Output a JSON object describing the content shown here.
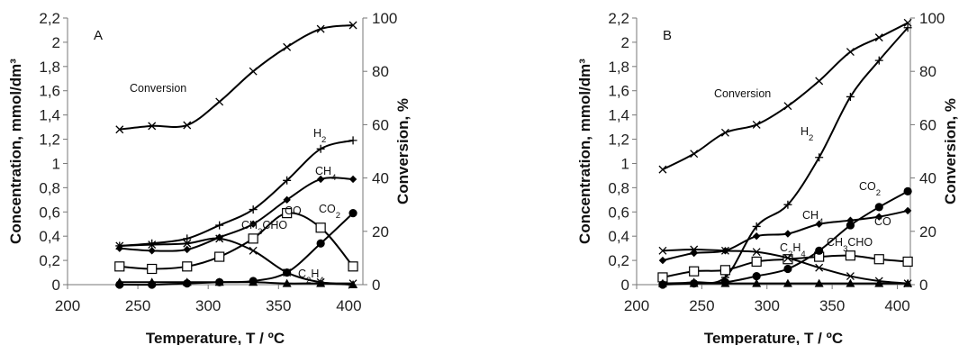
{
  "chart_data": [
    {
      "type": "line",
      "panel_label": "A",
      "xlabel": "Temperature, T / ºC",
      "ylabel": "Concentration, mmol/dm³",
      "y2label": "Conversion, %",
      "xlim": [
        200,
        410
      ],
      "ylim": [
        0,
        2.2
      ],
      "y2lim": [
        0,
        100
      ],
      "xticks": [
        200,
        250,
        300,
        350,
        400
      ],
      "yticks": [
        "0",
        "0,2",
        "0,4",
        "0,6",
        "0,8",
        "1",
        "1,2",
        "1,4",
        "1,6",
        "1,8",
        "2",
        "2,2"
      ],
      "y2ticks": [
        0,
        20,
        40,
        60,
        80,
        100
      ],
      "x": [
        237,
        260,
        285,
        308,
        332,
        356,
        380,
        403
      ],
      "series": [
        {
          "name": "Conversion",
          "marker": "x",
          "axis": "right",
          "values": [
            58.2,
            59.5,
            59.8,
            68.6,
            80.0,
            89.1,
            95.9,
            97.3
          ]
        },
        {
          "name": "H₂",
          "marker": "plus",
          "axis": "left",
          "values": [
            0.32,
            0.34,
            0.38,
            0.49,
            0.62,
            0.86,
            1.12,
            1.19
          ]
        },
        {
          "name": "CH₄",
          "marker": "diamond",
          "axis": "left",
          "values": [
            0.3,
            0.28,
            0.29,
            0.39,
            0.5,
            0.7,
            0.87,
            0.87
          ]
        },
        {
          "name": "CO",
          "marker": "square",
          "axis": "left",
          "values": [
            0.15,
            0.13,
            0.15,
            0.23,
            0.38,
            0.59,
            0.47,
            0.15
          ]
        },
        {
          "name": "CO₂",
          "marker": "circle",
          "axis": "left",
          "values": [
            0.0,
            0.0,
            0.01,
            0.02,
            0.03,
            0.1,
            0.34,
            0.59
          ]
        },
        {
          "name": "CH₃CHO",
          "marker": "x",
          "axis": "left",
          "values": [
            0.32,
            0.33,
            0.34,
            0.38,
            0.28,
            0.1,
            0.02,
            0.01
          ]
        },
        {
          "name": "C₂H₄",
          "marker": "triangle",
          "axis": "left",
          "values": [
            0.02,
            0.02,
            0.02,
            0.02,
            0.02,
            0.01,
            0.01,
            0.0
          ]
        }
      ]
    },
    {
      "type": "line",
      "panel_label": "B",
      "xlabel": "Temperature, T / ºC",
      "ylabel": "Concentration, mmol/dm³",
      "y2label": "Conversion, %",
      "xlim": [
        200,
        410
      ],
      "ylim": [
        0,
        2.2
      ],
      "y2lim": [
        0,
        100
      ],
      "xticks": [
        200,
        250,
        300,
        350,
        400
      ],
      "yticks": [
        "0",
        "0,2",
        "0,4",
        "0,6",
        "0,8",
        "1",
        "1,2",
        "1,4",
        "1,6",
        "1,8",
        "2",
        "2,2"
      ],
      "y2ticks": [
        0,
        20,
        40,
        60,
        80,
        100
      ],
      "x": [
        220,
        244,
        268,
        292,
        316,
        340,
        364,
        386,
        408
      ],
      "series": [
        {
          "name": "Conversion",
          "marker": "x",
          "axis": "right",
          "values": [
            43.2,
            49.1,
            57.0,
            60.0,
            67.0,
            76.4,
            87.3,
            92.7,
            98.2
          ]
        },
        {
          "name": "H₂",
          "marker": "plus",
          "axis": "left",
          "values": [
            0.01,
            0.02,
            0.06,
            0.48,
            0.66,
            1.05,
            1.55,
            1.85,
            2.12
          ]
        },
        {
          "name": "CH₄",
          "marker": "diamond",
          "axis": "left",
          "values": [
            0.2,
            0.26,
            0.28,
            0.4,
            0.42,
            0.5,
            0.53,
            0.56,
            0.61
          ]
        },
        {
          "name": "CO",
          "marker": "square",
          "axis": "left",
          "values": [
            0.06,
            0.11,
            0.12,
            0.19,
            0.21,
            0.23,
            0.24,
            0.21,
            0.19
          ]
        },
        {
          "name": "CO₂",
          "marker": "circle",
          "axis": "left",
          "values": [
            0.0,
            0.01,
            0.02,
            0.07,
            0.13,
            0.28,
            0.49,
            0.64,
            0.77
          ]
        },
        {
          "name": "CH₃CHO",
          "marker": "x",
          "axis": "left",
          "values": [
            0.28,
            0.29,
            0.28,
            0.27,
            0.22,
            0.14,
            0.07,
            0.03,
            0.01
          ]
        },
        {
          "name": "C₂H₄",
          "marker": "triangle",
          "axis": "left",
          "values": [
            0.01,
            0.01,
            0.01,
            0.01,
            0.01,
            0.01,
            0.01,
            0.01,
            0.01
          ]
        }
      ]
    }
  ]
}
